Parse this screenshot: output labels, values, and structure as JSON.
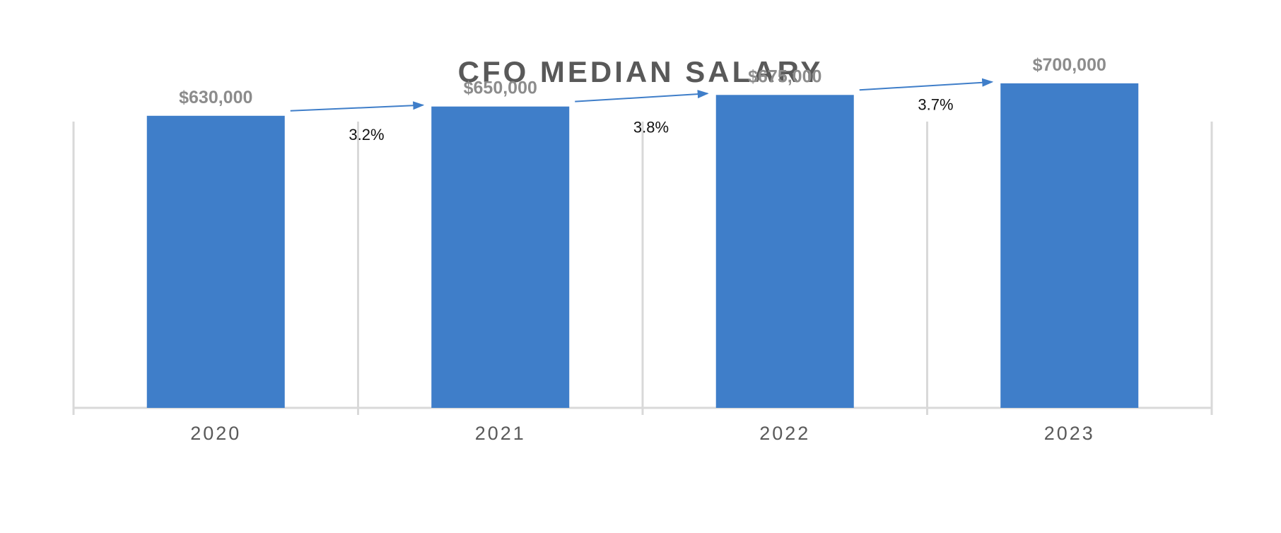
{
  "chart_data": {
    "type": "bar",
    "title": "CFO MEDIAN SALARY",
    "categories": [
      "2020",
      "2021",
      "2022",
      "2023"
    ],
    "values": [
      630000,
      650000,
      675000,
      700000
    ],
    "value_labels": [
      "$630,000",
      "$650,000",
      "$675,000",
      "$700,000"
    ],
    "growth_labels": [
      "3.2%",
      "3.8%",
      "3.7%"
    ],
    "xlabel": "",
    "ylabel": "",
    "ylim": [
      0,
      800000
    ],
    "grid": "vertical",
    "legend": "none",
    "bar_color": "#3f7ec9",
    "arrow_color": "#3f7ec9",
    "grid_color": "#d9d9d9"
  }
}
